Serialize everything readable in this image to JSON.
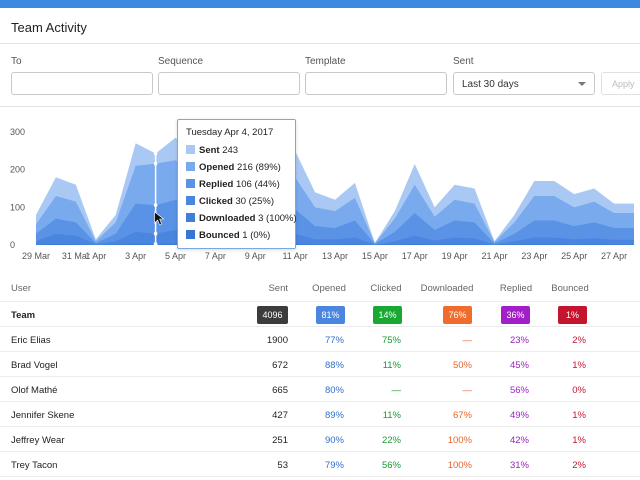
{
  "header": {
    "title": "Team Activity"
  },
  "filters": {
    "to_label": "To",
    "sequence_label": "Sequence",
    "template_label": "Template",
    "sent_label": "Sent",
    "sent_value": "Last 30 days",
    "apply_label": "Apply"
  },
  "colors": {
    "topbar": "#3d88e0",
    "sent": "#a9c9f4",
    "opened": "#79aaee",
    "replied": "#5a93e6",
    "clicked": "#4a86df",
    "downloaded": "#3f7fdc",
    "bounced": "#3876d6",
    "opened_badge": "#4a86df",
    "clicked_badge": "#1aa832",
    "downloaded_badge": "#ef6c2c",
    "replied_badge": "#a11fc7",
    "bounced_badge": "#c4142e",
    "sent_badge": "#3c3c3c"
  },
  "chart_data": {
    "type": "area",
    "x": [
      "29 Mar",
      "30 Mar",
      "31 Mar",
      "1 Apr",
      "2 Apr",
      "3 Apr",
      "4 Apr",
      "5 Apr",
      "6 Apr",
      "7 Apr",
      "8 Apr",
      "9 Apr",
      "10 Apr",
      "11 Apr",
      "12 Apr",
      "13 Apr",
      "14 Apr",
      "15 Apr",
      "16 Apr",
      "17 Apr",
      "18 Apr",
      "19 Apr",
      "20 Apr",
      "21 Apr",
      "22 Apr",
      "23 Apr",
      "24 Apr",
      "25 Apr",
      "26 Apr",
      "27 Apr",
      "28 Apr"
    ],
    "xtick_labels": [
      "29 Mar",
      "31 Mar",
      "1 Apr",
      "3 Apr",
      "5 Apr",
      "7 Apr",
      "9 Apr",
      "11 Apr",
      "13 Apr",
      "15 Apr",
      "17 Apr",
      "19 Apr",
      "21 Apr",
      "23 Apr",
      "25 Apr",
      "27 Apr"
    ],
    "ylim": [
      0,
      300
    ],
    "yticks": [
      0,
      100,
      200,
      300
    ],
    "series": [
      {
        "name": "Sent",
        "values": [
          80,
          180,
          160,
          15,
          80,
          270,
          243,
          285,
          235,
          240,
          210,
          215,
          280,
          250,
          140,
          120,
          165,
          5,
          90,
          215,
          100,
          160,
          150,
          10,
          80,
          170,
          170,
          135,
          150,
          110,
          110
        ]
      },
      {
        "name": "Opened",
        "values": [
          55,
          130,
          115,
          10,
          60,
          210,
          216,
          225,
          180,
          180,
          160,
          170,
          200,
          180,
          100,
          90,
          125,
          5,
          70,
          160,
          75,
          120,
          110,
          8,
          60,
          130,
          130,
          100,
          115,
          85,
          85
        ]
      },
      {
        "name": "Replied",
        "values": [
          30,
          70,
          60,
          5,
          30,
          110,
          106,
          120,
          90,
          95,
          80,
          90,
          105,
          95,
          50,
          45,
          65,
          3,
          35,
          85,
          40,
          65,
          60,
          4,
          30,
          65,
          65,
          50,
          60,
          45,
          45
        ]
      },
      {
        "name": "Clicked",
        "values": [
          10,
          30,
          25,
          2,
          10,
          35,
          30,
          40,
          30,
          30,
          25,
          30,
          35,
          30,
          15,
          15,
          20,
          1,
          10,
          25,
          12,
          20,
          18,
          1,
          10,
          20,
          20,
          15,
          18,
          14,
          14
        ]
      },
      {
        "name": "Downloaded",
        "values": [
          1,
          3,
          2,
          0,
          1,
          4,
          3,
          4,
          3,
          3,
          2,
          3,
          3,
          3,
          1,
          1,
          2,
          0,
          1,
          3,
          1,
          2,
          2,
          0,
          1,
          2,
          2,
          1,
          2,
          1,
          1
        ]
      },
      {
        "name": "Bounced",
        "values": [
          1,
          1,
          1,
          0,
          1,
          1,
          1,
          1,
          1,
          1,
          1,
          1,
          1,
          1,
          1,
          1,
          1,
          0,
          1,
          1,
          1,
          1,
          1,
          0,
          1,
          1,
          1,
          1,
          1,
          1,
          1
        ]
      }
    ],
    "highlight_index": 6
  },
  "tooltip": {
    "date": "Tuesday Apr 4, 2017",
    "rows": [
      {
        "label": "Sent",
        "value": "243"
      },
      {
        "label": "Opened",
        "value": "216 (89%)"
      },
      {
        "label": "Replied",
        "value": "106 (44%)"
      },
      {
        "label": "Clicked",
        "value": "30 (25%)"
      },
      {
        "label": "Downloaded",
        "value": "3 (100%)"
      },
      {
        "label": "Bounced",
        "value": "1 (0%)"
      }
    ]
  },
  "table": {
    "headers": {
      "user": "User",
      "sent": "Sent",
      "opened": "Opened",
      "clicked": "Clicked",
      "downloaded": "Downloaded",
      "replied": "Replied",
      "bounced": "Bounced"
    },
    "team": {
      "name": "Team",
      "sent": "4096",
      "opened": "81%",
      "clicked": "14%",
      "downloaded": "76%",
      "replied": "36%",
      "bounced": "1%"
    },
    "rows": [
      {
        "name": "Eric Elias",
        "sent": "1900",
        "opened": "77%",
        "clicked": "75%",
        "downloaded": "—",
        "replied": "23%",
        "bounced": "2%"
      },
      {
        "name": "Brad Vogel",
        "sent": "672",
        "opened": "88%",
        "clicked": "11%",
        "downloaded": "50%",
        "replied": "45%",
        "bounced": "1%"
      },
      {
        "name": "Olof Mathé",
        "sent": "665",
        "opened": "80%",
        "clicked": "—",
        "downloaded": "—",
        "replied": "56%",
        "bounced": "0%"
      },
      {
        "name": "Jennifer Skene",
        "sent": "427",
        "opened": "89%",
        "clicked": "11%",
        "downloaded": "67%",
        "replied": "49%",
        "bounced": "1%"
      },
      {
        "name": "Jeffrey Wear",
        "sent": "251",
        "opened": "90%",
        "clicked": "22%",
        "downloaded": "100%",
        "replied": "42%",
        "bounced": "1%"
      },
      {
        "name": "Trey Tacon",
        "sent": "53",
        "opened": "79%",
        "clicked": "56%",
        "downloaded": "100%",
        "replied": "31%",
        "bounced": "2%"
      }
    ]
  }
}
